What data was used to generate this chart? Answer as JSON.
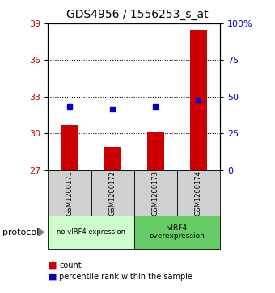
{
  "title": "GDS4956 / 1556253_s_at",
  "samples": [
    "GSM1200171",
    "GSM1200172",
    "GSM1200173",
    "GSM1200174"
  ],
  "bar_values": [
    30.7,
    28.9,
    30.1,
    38.5
  ],
  "dot_values": [
    32.2,
    32.0,
    32.2,
    32.7
  ],
  "bar_color": "#cc0000",
  "dot_color": "#0000cc",
  "ylim_left": [
    27,
    39
  ],
  "ylim_right": [
    0,
    100
  ],
  "yticks_left": [
    27,
    30,
    33,
    36,
    39
  ],
  "yticks_right": [
    0,
    25,
    50,
    75,
    100
  ],
  "ytick_labels_right": [
    "0",
    "25",
    "50",
    "75",
    "100%"
  ],
  "grid_values": [
    30,
    33,
    36
  ],
  "group1_label": "no vIRF4 expression",
  "group2_label": "vIRF4\noverexpression",
  "group1_color": "#ccffcc",
  "group2_color": "#66cc66",
  "protocol_label": "protocol",
  "legend_count": "count",
  "legend_pct": "percentile rank within the sample",
  "sample_bg_color": "#d0d0d0",
  "plot_bg": "#ffffff"
}
